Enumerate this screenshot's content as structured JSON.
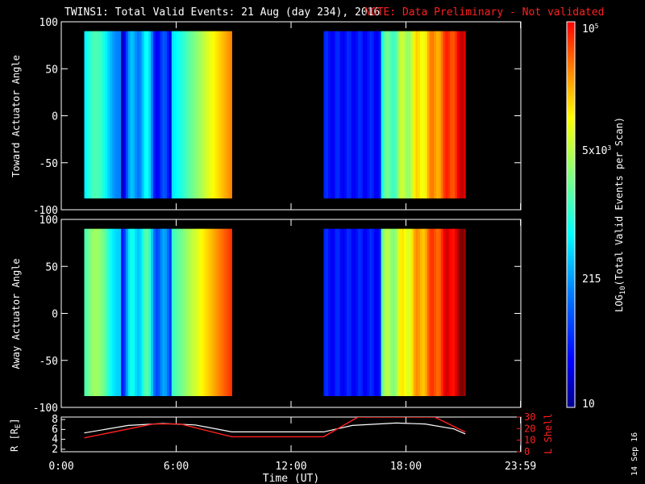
{
  "title": {
    "main": "TWINS1: Total Valid Events: 21 Aug (day 234), 2016",
    "note": "NOTE: Data Preliminary - Not validated"
  },
  "panels": {
    "top_ylabel": "Toward Actuator Angle",
    "bottom_ylabel": "Away Actuator Angle",
    "y_ticks": [
      "100",
      "50",
      "0",
      "-50",
      "-100"
    ],
    "orbit_ylabel": "R [R",
    "orbit_ylabel_sub": "E",
    "orbit_ylabel_end": "]",
    "orbit_yticks": [
      "8",
      "6",
      "4",
      "2"
    ],
    "lshell_label": "L Shell",
    "lshell_ticks": [
      "30",
      "20",
      "10",
      "0"
    ]
  },
  "x_axis": {
    "ticks": [
      "0:00",
      "6:00",
      "12:00",
      "18:00",
      "23:59"
    ],
    "label": "Time (UT)"
  },
  "colorbar": {
    "label_prefix": "LOG",
    "label_sub": "10",
    "label_suffix": "(Total Valid Events per Scan)",
    "tick_top": "10",
    "tick_top_sup": "5",
    "tick_mid_base": "5x10",
    "tick_mid_sup": "3",
    "tick_215": "215",
    "tick_bottom": "10",
    "colors": [
      "#00008f",
      "#0000ff",
      "#0080ff",
      "#00ffff",
      "#80ff80",
      "#ffff00",
      "#ff8000",
      "#ff0000"
    ]
  },
  "side_date": "14 Sep 16",
  "chart_data": {
    "type": "heatmap",
    "title": "TWINS1: Total Valid Events: 21 Aug (day 234), 2016",
    "note": "NOTE: Data Preliminary - Not validated",
    "xlabel": "Time (UT)",
    "xlim": [
      0,
      24
    ],
    "color_scale": "log10",
    "color_range": [
      10,
      100000
    ],
    "panels": [
      {
        "name": "Toward Actuator Angle",
        "ylim": [
          -100,
          100
        ],
        "angle_range": [
          -88,
          90
        ],
        "data_intervals_hours": [
          [
            1.2,
            8.9
          ],
          [
            13.7,
            21.1
          ]
        ]
      },
      {
        "name": "Away Actuator Angle",
        "ylim": [
          -100,
          100
        ],
        "angle_range": [
          -88,
          90
        ],
        "data_intervals_hours": [
          [
            1.2,
            8.9
          ],
          [
            13.7,
            21.1
          ]
        ]
      }
    ],
    "orbit": {
      "r_ylim": [
        1.5,
        8.5
      ],
      "lshell_ylim": [
        0,
        30
      ],
      "r_points": [
        [
          1.2,
          5.3
        ],
        [
          3.5,
          6.8
        ],
        [
          5.3,
          7.2
        ],
        [
          7.0,
          6.9
        ],
        [
          8.9,
          5.5
        ],
        [
          13.7,
          5.5
        ],
        [
          15.2,
          6.8
        ],
        [
          17.5,
          7.3
        ],
        [
          19.0,
          7.1
        ],
        [
          20.5,
          6.1
        ],
        [
          21.1,
          5.1
        ]
      ],
      "lshell_points": [
        [
          1.2,
          12
        ],
        [
          4.8,
          24
        ],
        [
          6.2,
          24
        ],
        [
          8.9,
          13
        ],
        [
          13.7,
          13
        ],
        [
          15.5,
          30
        ],
        [
          19.5,
          30
        ],
        [
          21.1,
          17
        ]
      ]
    }
  }
}
